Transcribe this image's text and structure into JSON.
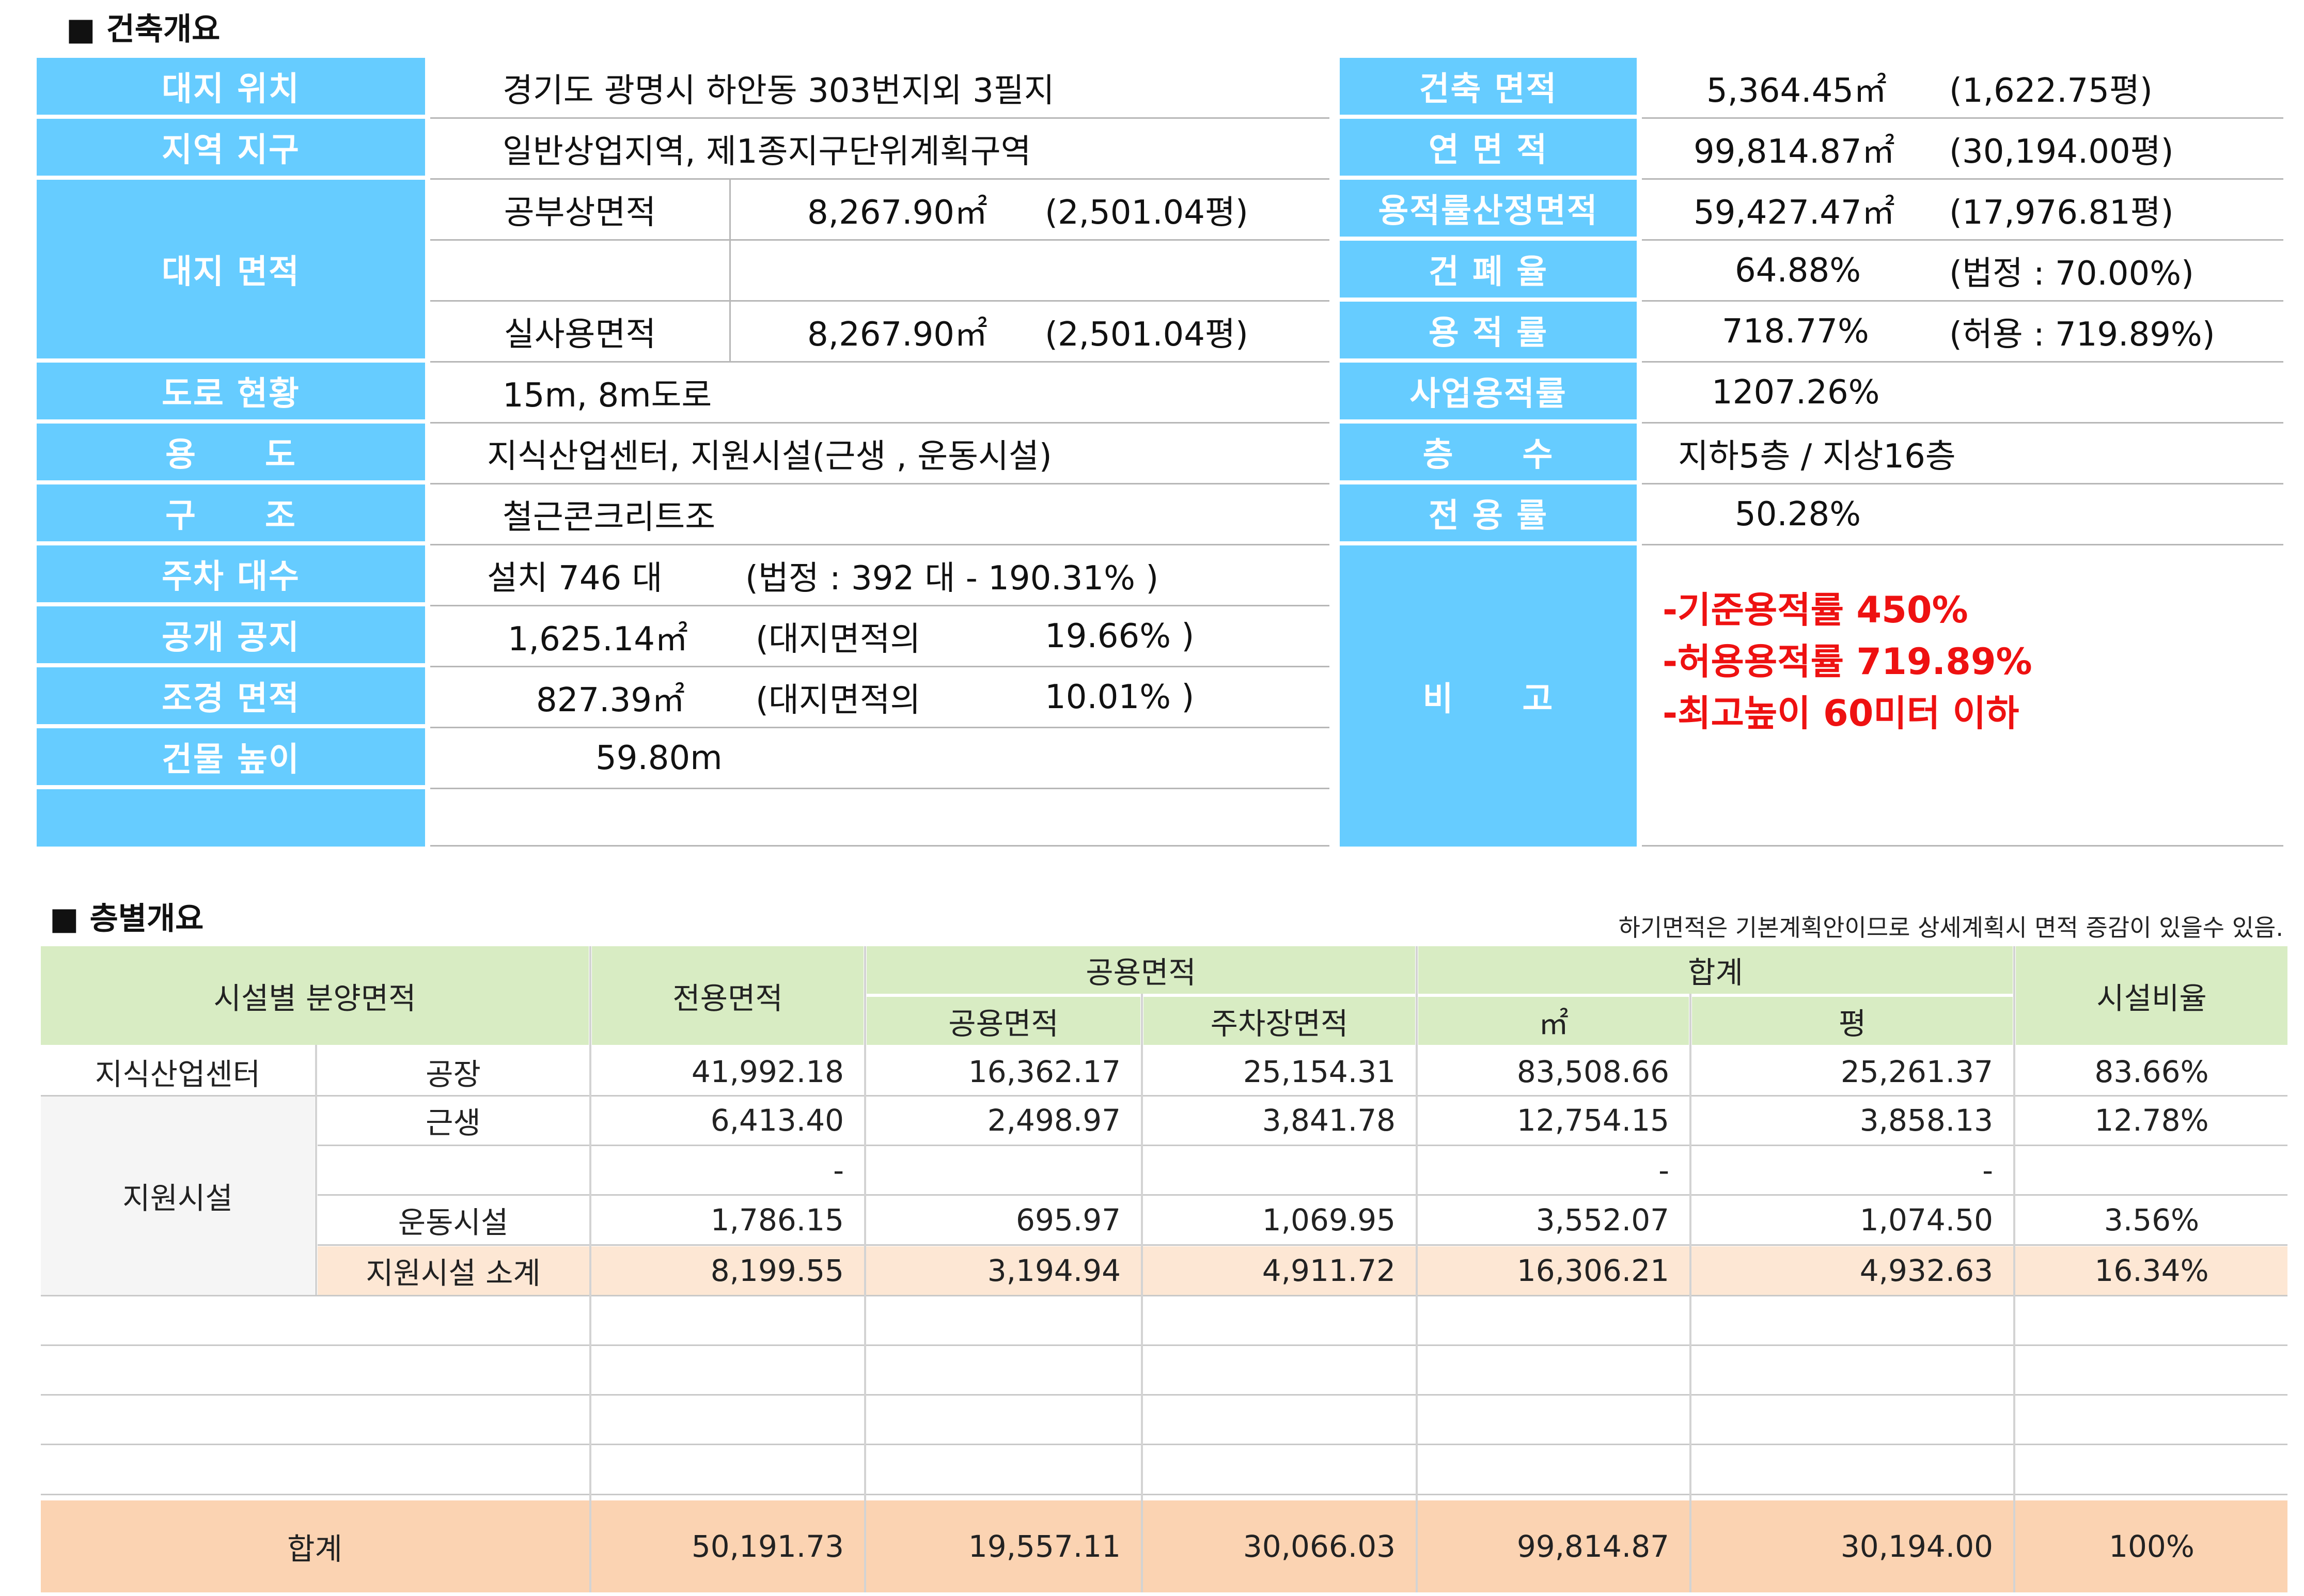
{
  "overview": {
    "title": "■ 건축개요",
    "site_location": {
      "label": "대지 위치",
      "value": "경기도 광명시 하안동 303번지외 3필지"
    },
    "zoning": {
      "label": "지역 지구",
      "value": "일반상업지역, 제1종지구단위계획구역"
    },
    "site_area": {
      "label": "대지 면적",
      "official": {
        "label": "공부상면적",
        "sqm": "8,267.90㎡",
        "pyeong": "(2,501.04평)"
      },
      "actual": {
        "label": "실사용면적",
        "sqm": "8,267.90㎡",
        "pyeong": "(2,501.04평)"
      }
    },
    "road": {
      "label": "도로 현황",
      "value": "15m, 8m도로"
    },
    "use": {
      "label": "용　　도",
      "value": "지식산업센터, 지원시설(근생 , 운동시설)"
    },
    "structure": {
      "label": "구　　조",
      "value": "철근콘크리트조"
    },
    "parking": {
      "label": "주차 대수",
      "value": "설치 746 대",
      "note": "(법정 :  392 대 -   190.31% )"
    },
    "public_space": {
      "label": "공개 공지",
      "value": "1,625.14㎡",
      "note": "(대지면적의",
      "ratio": "19.66% )"
    },
    "landscape": {
      "label": "조경 면적",
      "value": "827.39㎡",
      "note": "(대지면적의",
      "ratio": "10.01% )"
    },
    "height": {
      "label": "건물 높이",
      "value": "59.80m"
    },
    "building_area": {
      "label": "건축 면적",
      "sqm": "5,364.45㎡",
      "pyeong": "(1,622.75평)"
    },
    "gross_area": {
      "label": "연 면 적",
      "sqm": "99,814.87㎡",
      "pyeong": "(30,194.00평)"
    },
    "far_area": {
      "label": "용적률산정면적",
      "sqm": "59,427.47㎡",
      "pyeong": "(17,976.81평)"
    },
    "bcr": {
      "label": "건 폐 율",
      "value": "64.88%",
      "note": "(법정 : 70.00%)"
    },
    "far": {
      "label": "용 적 률",
      "value": "718.77%",
      "note": "(허용 : 719.89%)"
    },
    "biz_far": {
      "label": "사업용적률",
      "value": "1207.26%"
    },
    "floors": {
      "label": "층　　수",
      "value": "지하5층 / 지상16층"
    },
    "exclusive": {
      "label": "전 용 률",
      "value": "50.28%"
    },
    "remarks": {
      "label": "비　　고",
      "lines": [
        "-기준용적률 450%",
        "-허용용적률 719.89%",
        "-최고높이 60미터 이하"
      ]
    }
  },
  "floors_table": {
    "title": "■ 층별개요",
    "note": "하기면적은 기본계획안이므로 상세계획시 면적 증감이 있을수 있음.",
    "headers": {
      "facility": "시설별 분양면적",
      "exclusive": "전용면적",
      "common_group": "공용면적",
      "common": "공용면적",
      "parking": "주차장면적",
      "total_group": "합계",
      "sqm": "㎡",
      "pyeong": "평",
      "ratio": "시설비율"
    },
    "group_knowledge": "지식산업센터",
    "group_support": "지원시설",
    "rows": [
      {
        "name": "공장",
        "exclusive": "41,992.18",
        "common": "16,362.17",
        "parking": "25,154.31",
        "sqm": "83,508.66",
        "pyeong": "25,261.37",
        "ratio": "83.66%"
      },
      {
        "name": "근생",
        "exclusive": "6,413.40",
        "common": "2,498.97",
        "parking": "3,841.78",
        "sqm": "12,754.15",
        "pyeong": "3,858.13",
        "ratio": "12.78%"
      },
      {
        "name": "",
        "exclusive": "-",
        "common": "",
        "parking": "",
        "sqm": "-",
        "pyeong": "-",
        "ratio": ""
      },
      {
        "name": "운동시설",
        "exclusive": "1,786.15",
        "common": "695.97",
        "parking": "1,069.95",
        "sqm": "3,552.07",
        "pyeong": "1,074.50",
        "ratio": "3.56%"
      },
      {
        "name": "지원시설 소계",
        "exclusive": "8,199.55",
        "common": "3,194.94",
        "parking": "4,911.72",
        "sqm": "16,306.21",
        "pyeong": "4,932.63",
        "ratio": "16.34%"
      }
    ],
    "total": {
      "label": "합계",
      "exclusive": "50,191.73",
      "common": "19,557.11",
      "parking": "30,066.03",
      "sqm": "99,814.87",
      "pyeong": "30,194.00",
      "ratio": "100%"
    }
  }
}
